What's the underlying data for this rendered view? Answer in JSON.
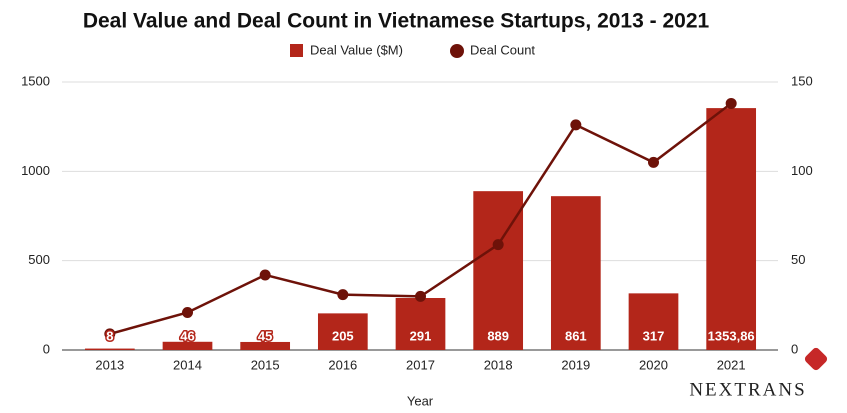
{
  "chart_data": {
    "type": "bar-line",
    "title": "Deal Value and Deal Count in Vietnamese Startups, 2013 - 2021",
    "x_label": "Year",
    "categories": [
      "2013",
      "2014",
      "2015",
      "2016",
      "2017",
      "2018",
      "2019",
      "2020",
      "2021"
    ],
    "series": [
      {
        "name": "Deal Value ($M)",
        "type": "bar",
        "color": "#b3261a",
        "values": [
          8,
          46,
          45,
          205,
          291,
          889,
          861,
          317,
          1353.86
        ],
        "value_labels": [
          "8",
          "46",
          "45",
          "205",
          "291",
          "889",
          "861",
          "317",
          "1353,86"
        ]
      },
      {
        "name": "Deal Count",
        "type": "line",
        "axis": "y2",
        "color": "#6e1209",
        "values": [
          9,
          21,
          42,
          31,
          30,
          59,
          126,
          105,
          138
        ]
      }
    ],
    "ylim": [
      0,
      1500
    ],
    "yticks": [
      0,
      500,
      1000,
      1500
    ],
    "y2lim": [
      0,
      150
    ],
    "y2ticks": [
      0,
      50,
      100,
      150
    ],
    "grid": true,
    "logo": "NEXTRANS"
  }
}
